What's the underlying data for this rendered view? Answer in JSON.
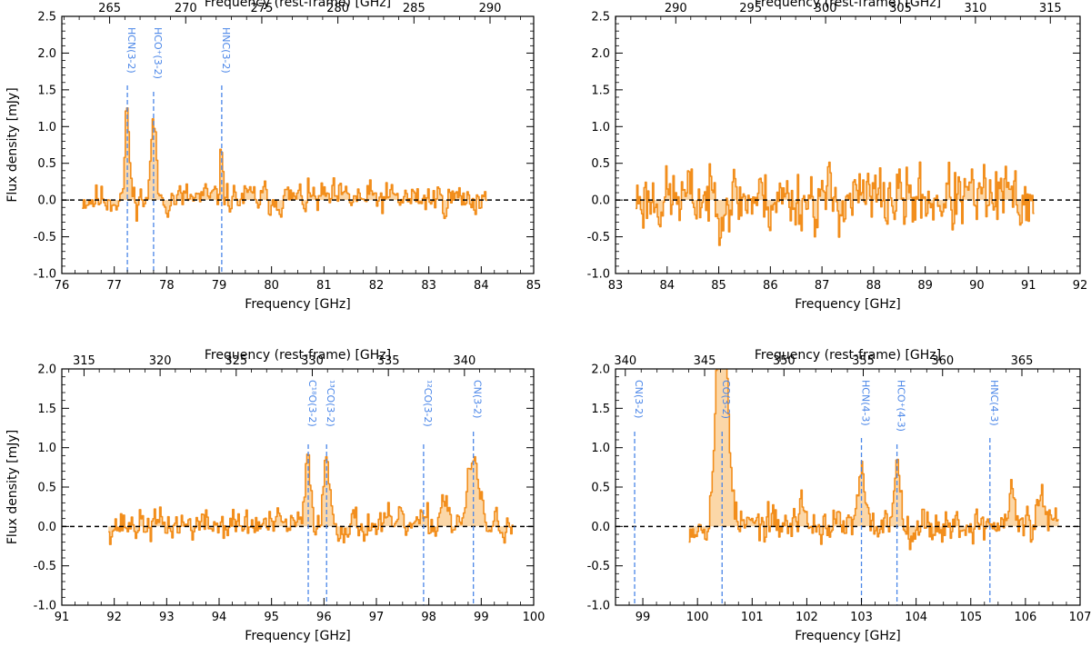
{
  "chart_data": [
    {
      "type": "line",
      "panel": "top-left",
      "xlabel": "Frequency [GHz]",
      "x2label": "Frequency (rest-frame) [GHz]",
      "ylabel": "Flux density [mJy]",
      "xlim": [
        76,
        85
      ],
      "ylim": [
        -1.0,
        2.5
      ],
      "xticks": [
        76,
        77,
        78,
        79,
        80,
        81,
        82,
        83,
        84,
        85
      ],
      "yticks": [
        -1.0,
        -0.5,
        0.0,
        0.5,
        1.0,
        1.5,
        2.0,
        2.5
      ],
      "x2ticks": [
        265,
        270,
        275,
        280,
        285,
        290
      ],
      "x2_offset": 0,
      "range": [
        76.4,
        84.1
      ],
      "channels": 300,
      "noise": 0.13,
      "seed": 11,
      "lines": [
        {
          "label": "HCN(3-2)",
          "freq": 77.25,
          "peak": 1.2,
          "width": 0.04
        },
        {
          "label": "HCO⁺(3-2)",
          "freq": 77.75,
          "peak": 1.1,
          "width": 0.045
        },
        {
          "label": "HNC(3-2)",
          "freq": 79.05,
          "peak": 0.65,
          "width": 0.03
        }
      ]
    },
    {
      "type": "line",
      "panel": "top-right",
      "xlabel": "Frequency [GHz]",
      "x2label": "Frequency (rest-frame) [GHz]",
      "ylabel": "",
      "xlim": [
        83,
        92
      ],
      "ylim": [
        -1.0,
        2.5
      ],
      "xticks": [
        83,
        84,
        85,
        86,
        87,
        88,
        89,
        90,
        91,
        92
      ],
      "yticks": [
        -1.0,
        -0.5,
        0.0,
        0.5,
        1.0,
        1.5,
        2.0,
        2.5
      ],
      "x2ticks": [
        290,
        295,
        300,
        305,
        310,
        315
      ],
      "x2_offset": 0,
      "range": [
        83.4,
        91.1
      ],
      "channels": 330,
      "noise": 0.26,
      "seed": 23,
      "lines": []
    },
    {
      "type": "line",
      "panel": "bottom-left",
      "xlabel": "Frequency [GHz]",
      "x2label": "Frequency (rest-frame) [GHz]",
      "ylabel": "Flux density [mJy]",
      "xlim": [
        91,
        100
      ],
      "ylim": [
        -1.0,
        2.0
      ],
      "xticks": [
        91,
        92,
        93,
        94,
        95,
        96,
        97,
        98,
        99,
        100
      ],
      "yticks": [
        -1.0,
        -0.5,
        0.0,
        0.5,
        1.0,
        1.5,
        2.0
      ],
      "x2ticks": [
        315,
        320,
        325,
        330,
        335,
        340
      ],
      "x2_offset": 0,
      "range": [
        91.9,
        99.6
      ],
      "channels": 300,
      "noise": 0.12,
      "seed": 37,
      "lines": [
        {
          "label": "C¹⁸O(3-2)",
          "freq": 95.7,
          "peak": 0.85,
          "width": 0.05
        },
        {
          "label": "¹³CO(3-2)",
          "freq": 96.05,
          "peak": 0.75,
          "width": 0.07
        },
        {
          "label": "¹²CO(3-2)",
          "freq": 97.9,
          "peak": 0.0,
          "width": 0.05
        },
        {
          "label": "CN(3-2)",
          "freq": 98.85,
          "peak": 0.8,
          "width": 0.1
        },
        {
          "label": "",
          "freq": 98.3,
          "peak": 0.35,
          "width": 0.08
        }
      ]
    },
    {
      "type": "line",
      "panel": "bottom-right",
      "xlabel": "Frequency [GHz]",
      "x2label": "Frequency (rest-frame) [GHz]",
      "ylabel": "",
      "xlim": [
        98.5,
        107
      ],
      "ylim": [
        -1.0,
        2.0
      ],
      "xticks": [
        99,
        100,
        101,
        102,
        103,
        104,
        105,
        106,
        107
      ],
      "yticks": [
        -1.0,
        -0.5,
        0.0,
        0.5,
        1.0,
        1.5,
        2.0
      ],
      "x2ticks": [
        340,
        345,
        350,
        355,
        360,
        365
      ],
      "x2_offset": 0,
      "range": [
        99.85,
        106.6
      ],
      "channels": 300,
      "noise": 0.13,
      "seed": 53,
      "lines": [
        {
          "label": "CN(3-2)",
          "freq": 98.85,
          "peak": 0.0,
          "width": 0.05
        },
        {
          "label": "CO(3-2)",
          "freq": 100.45,
          "peak": 3.2,
          "width": 0.1
        },
        {
          "label": "HCN(4-3)",
          "freq": 103.0,
          "peak": 0.7,
          "width": 0.05
        },
        {
          "label": "HCO⁺(4-3)",
          "freq": 103.65,
          "peak": 0.8,
          "width": 0.06
        },
        {
          "label": "HNC(4-3)",
          "freq": 105.35,
          "peak": 0.0,
          "width": 0.05
        },
        {
          "label": "",
          "freq": 101.9,
          "peak": 0.4,
          "width": 0.04
        },
        {
          "label": "",
          "freq": 105.75,
          "peak": 0.45,
          "width": 0.05
        },
        {
          "label": "",
          "freq": 106.3,
          "peak": 0.45,
          "width": 0.05
        }
      ]
    }
  ],
  "style": {
    "spectrum_color": "#f28e1c",
    "fill_color": "#fbd7a8",
    "line_marker_color": "#4a86e8",
    "zero_line_color": "#000000"
  }
}
